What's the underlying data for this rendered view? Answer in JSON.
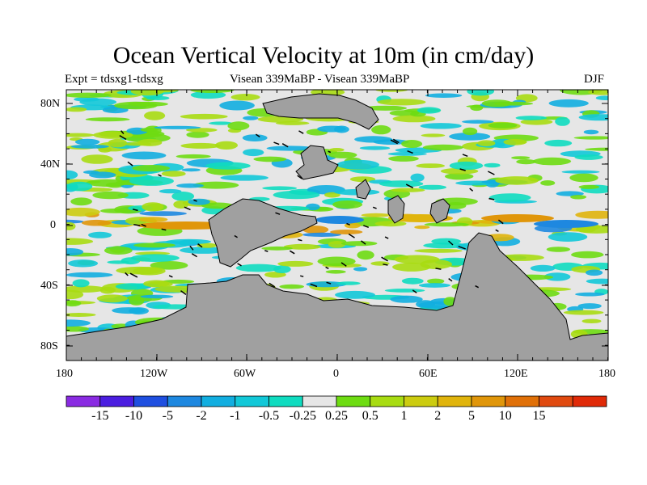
{
  "title": "Ocean Vertical Velocity at 10m (in cm/day)",
  "left_subtitle": "Expt = tdsxg1-tdsxg",
  "center_subtitle": "Visean 339MaBP - Visean 339MaBP",
  "right_subtitle": "DJF",
  "y_ticks": [
    "80N",
    "40N",
    "0",
    "40S",
    "80S"
  ],
  "x_ticks": [
    "180",
    "120W",
    "60W",
    "0",
    "60E",
    "120E",
    "180"
  ],
  "colorbar": {
    "colors": [
      "#8a2be2",
      "#4b1ee0",
      "#1f4fe0",
      "#1e88e0",
      "#12aee0",
      "#12c8d8",
      "#10dcc0",
      "#e6e6e6",
      "#6edc12",
      "#a8dc12",
      "#cccc10",
      "#e0b40c",
      "#e0960a",
      "#e07008",
      "#e04a10",
      "#e02a08"
    ],
    "labels": [
      "-15",
      "-10",
      "-5",
      "-2",
      "-1",
      "-0.5",
      "-0.25",
      "0.25",
      "0.5",
      "1",
      "2",
      "5",
      "10",
      "15"
    ]
  },
  "land_color": "#a0a0a0",
  "neutral_color": "#e6e6e6"
}
